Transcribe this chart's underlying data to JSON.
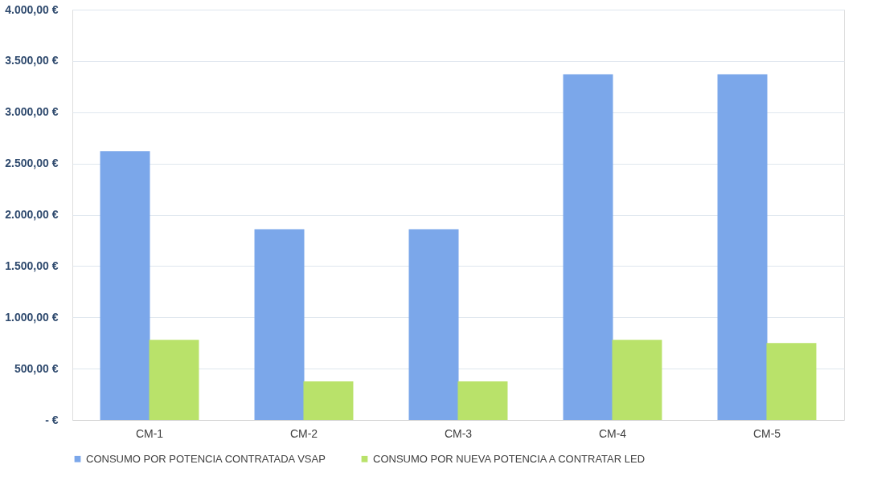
{
  "chart_data": {
    "type": "bar",
    "categories": [
      "CM-1",
      "CM-2",
      "CM-3",
      "CM-4",
      "CM-5"
    ],
    "series": [
      {
        "name": "CONSUMO POR POTENCIA CONTRATADA VSAP",
        "color": "#7ba7ea",
        "values": [
          2620,
          1860,
          1860,
          3370,
          3370
        ]
      },
      {
        "name": "CONSUMO POR NUEVA POTENCIA A CONTRATAR LED",
        "color": "#b9e26a",
        "values": [
          780,
          375,
          375,
          780,
          750
        ]
      }
    ],
    "ylim": [
      0,
      4000
    ],
    "yticks": [
      {
        "value": 0,
        "label": "-  €"
      },
      {
        "value": 500,
        "label": "500,00 €"
      },
      {
        "value": 1000,
        "label": "1.000,00 €"
      },
      {
        "value": 1500,
        "label": "1.500,00 €"
      },
      {
        "value": 2000,
        "label": "2.000,00 €"
      },
      {
        "value": 2500,
        "label": "2.500,00 €"
      },
      {
        "value": 3000,
        "label": "3.000,00 €"
      },
      {
        "value": 3500,
        "label": "3.500,00 €"
      },
      {
        "value": 4000,
        "label": "4.000,00 €"
      }
    ],
    "grid": "y",
    "legend": "bottom"
  }
}
